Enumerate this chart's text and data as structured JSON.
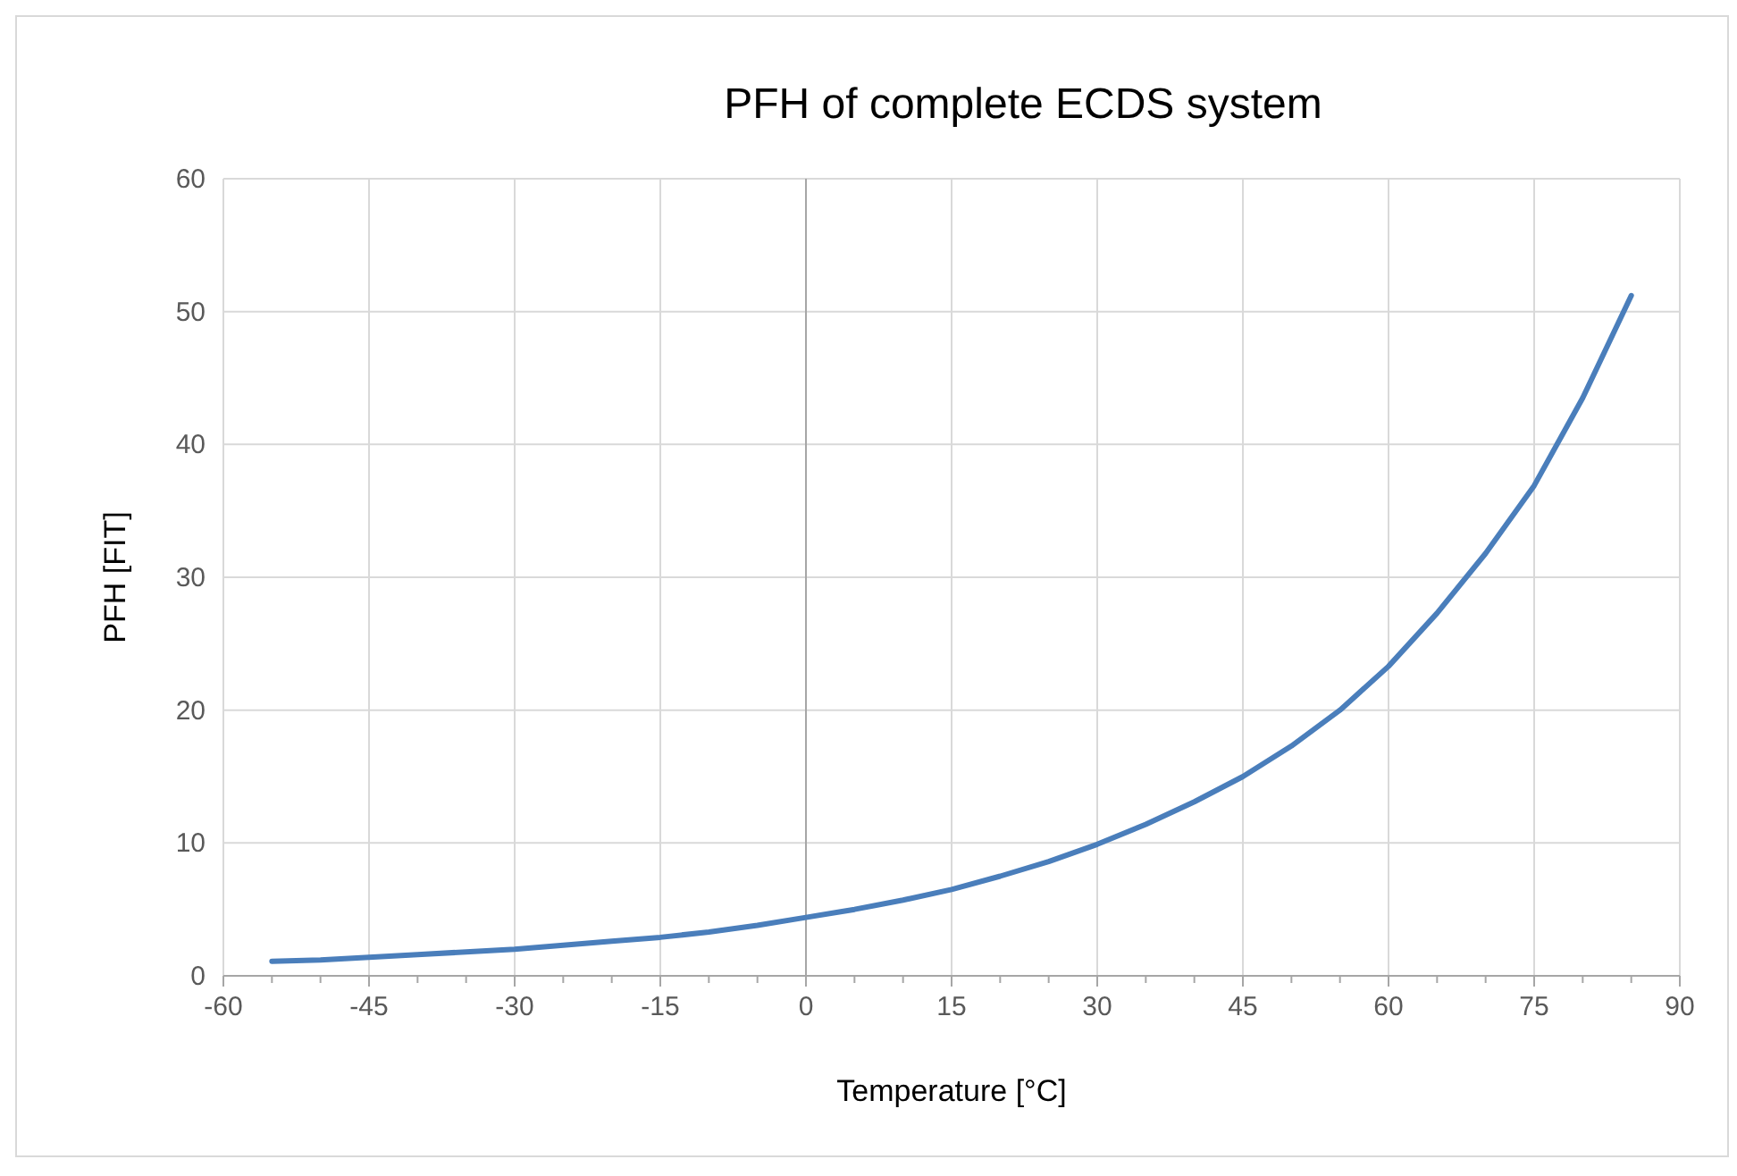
{
  "chart_data": {
    "type": "line",
    "title": "PFH of complete ECDS system",
    "xlabel": "Temperature [°C]",
    "ylabel": "PFH [FIT]",
    "xlim": [
      -60,
      90
    ],
    "xticks": [
      -60,
      {
        "value": -55,
        "label": null
      },
      {
        "value": -50,
        "label": null
      },
      -45,
      {
        "value": -40,
        "label": null
      },
      {
        "value": -35,
        "label": null
      },
      -30,
      {
        "value": -25,
        "label": null
      },
      {
        "value": -20,
        "label": null
      },
      -15,
      {
        "value": -10,
        "label": null
      },
      {
        "value": -5,
        "label": null
      },
      0,
      {
        "value": 5,
        "label": null
      },
      {
        "value": 10,
        "label": null
      },
      15,
      {
        "value": 20,
        "label": null
      },
      {
        "value": 25,
        "label": null
      },
      30,
      {
        "value": 35,
        "label": null
      },
      {
        "value": 40,
        "label": null
      },
      45,
      {
        "value": 50,
        "label": null
      },
      {
        "value": 55,
        "label": null
      },
      60,
      {
        "value": 65,
        "label": null
      },
      {
        "value": 70,
        "label": null
      },
      75,
      {
        "value": 80,
        "label": null
      },
      {
        "value": 85,
        "label": null
      },
      90
    ],
    "ylim": [
      0,
      60
    ],
    "yticks": [
      0,
      10,
      20,
      30,
      40,
      50,
      60
    ],
    "grid": true,
    "marker": "none",
    "line_style": "solid",
    "x": [
      -55,
      -50,
      -45,
      -40,
      -35,
      -30,
      -25,
      -20,
      -15,
      -10,
      -5,
      0,
      5,
      10,
      15,
      20,
      25,
      30,
      35,
      40,
      45,
      50,
      55,
      60,
      65,
      70,
      75,
      80,
      85
    ],
    "series": [
      {
        "color": "#4a7ebb",
        "values": [
          1.1,
          1.2,
          1.4,
          1.6,
          1.8,
          2.0,
          2.3,
          2.6,
          2.9,
          3.3,
          3.8,
          4.4,
          5.0,
          5.7,
          6.5,
          7.5,
          8.6,
          9.9,
          11.4,
          13.1,
          15.0,
          17.3,
          20.0,
          23.3,
          27.3,
          31.8,
          36.9,
          43.5,
          51.2
        ]
      }
    ]
  }
}
